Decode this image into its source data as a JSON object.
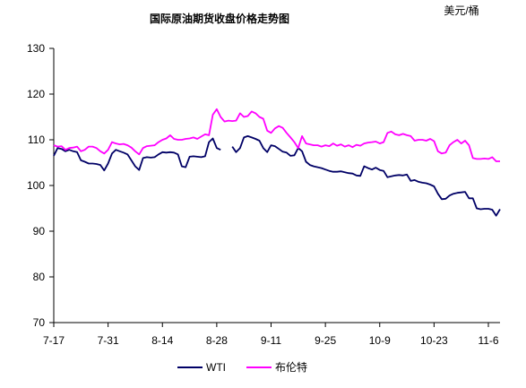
{
  "chart_data": {
    "type": "line",
    "title": "国际原油期货收盘价格走势图",
    "unit": "美元/桶",
    "ylim": [
      70,
      130
    ],
    "yticks": [
      70,
      80,
      90,
      100,
      110,
      120,
      130
    ],
    "xtick_labels": [
      "7-17",
      "7-31",
      "8-14",
      "8-28",
      "9-11",
      "9-25",
      "10-9",
      "10-23",
      "11-6"
    ],
    "xtick_positions": [
      0,
      14,
      28,
      42,
      56,
      70,
      84,
      98,
      112
    ],
    "x_range": [
      0,
      112
    ],
    "grid": false,
    "legend": "bottom",
    "series": [
      {
        "name": "WTI",
        "color": "#000066",
        "points": [
          [
            0,
            106.5
          ],
          [
            1,
            108.2
          ],
          [
            2,
            108.0
          ],
          [
            3,
            107.5
          ],
          [
            4,
            107.8
          ],
          [
            5,
            107.5
          ],
          [
            6,
            107.3
          ],
          [
            7,
            105.5
          ],
          [
            8,
            105.2
          ],
          [
            9,
            104.8
          ],
          [
            10,
            104.8
          ],
          [
            11,
            104.7
          ],
          [
            12,
            104.5
          ],
          [
            13,
            103.3
          ],
          [
            14,
            104.8
          ],
          [
            15,
            107.0
          ],
          [
            16,
            107.8
          ],
          [
            17,
            107.5
          ],
          [
            18,
            107.2
          ],
          [
            19,
            106.8
          ],
          [
            20,
            105.5
          ],
          [
            21,
            104.2
          ],
          [
            22,
            103.4
          ],
          [
            23,
            106.0
          ],
          [
            24,
            106.2
          ],
          [
            25,
            106.1
          ],
          [
            26,
            106.2
          ],
          [
            27,
            106.8
          ],
          [
            28,
            107.3
          ],
          [
            29,
            107.2
          ],
          [
            30,
            107.3
          ],
          [
            31,
            107.2
          ],
          [
            32,
            106.8
          ],
          [
            33,
            104.2
          ],
          [
            34,
            104.0
          ],
          [
            35,
            106.3
          ],
          [
            36,
            106.4
          ],
          [
            37,
            106.3
          ],
          [
            38,
            106.2
          ],
          [
            39,
            106.4
          ],
          [
            40,
            109.5
          ],
          [
            41,
            110.3
          ],
          [
            42,
            108.2
          ],
          [
            43,
            107.8
          ],
          [
            45,
            null
          ],
          [
            46,
            108.5
          ],
          [
            47,
            107.3
          ],
          [
            48,
            108.2
          ],
          [
            49,
            110.5
          ],
          [
            50,
            110.8
          ],
          [
            51,
            110.5
          ],
          [
            52,
            110.2
          ],
          [
            53,
            109.8
          ],
          [
            54,
            108.2
          ],
          [
            55,
            107.3
          ],
          [
            56,
            108.8
          ],
          [
            57,
            108.6
          ],
          [
            58,
            108.0
          ],
          [
            59,
            107.4
          ],
          [
            60,
            107.2
          ],
          [
            61,
            106.5
          ],
          [
            62,
            106.6
          ],
          [
            63,
            108.2
          ],
          [
            64,
            107.5
          ],
          [
            65,
            105.2
          ],
          [
            66,
            104.5
          ],
          [
            67,
            104.2
          ],
          [
            68,
            104.0
          ],
          [
            69,
            103.8
          ],
          [
            70,
            103.5
          ],
          [
            71,
            103.2
          ],
          [
            72,
            103.0
          ],
          [
            73,
            103.0
          ],
          [
            74,
            103.1
          ],
          [
            75,
            102.9
          ],
          [
            76,
            102.7
          ],
          [
            77,
            102.6
          ],
          [
            78,
            102.2
          ],
          [
            79,
            102.1
          ],
          [
            80,
            104.2
          ],
          [
            81,
            103.8
          ],
          [
            82,
            103.5
          ],
          [
            83,
            103.9
          ],
          [
            84,
            103.4
          ],
          [
            85,
            103.2
          ],
          [
            86,
            101.8
          ],
          [
            87,
            102.0
          ],
          [
            88,
            102.2
          ],
          [
            89,
            102.3
          ],
          [
            90,
            102.2
          ],
          [
            91,
            102.4
          ],
          [
            92,
            101.0
          ],
          [
            93,
            101.2
          ],
          [
            94,
            100.8
          ],
          [
            95,
            100.6
          ],
          [
            96,
            100.5
          ],
          [
            97,
            100.2
          ],
          [
            98,
            99.8
          ],
          [
            99,
            98.2
          ],
          [
            100,
            97.0
          ],
          [
            101,
            97.1
          ],
          [
            102,
            97.8
          ],
          [
            103,
            98.2
          ],
          [
            104,
            98.4
          ],
          [
            105,
            98.5
          ],
          [
            106,
            98.6
          ],
          [
            107,
            97.2
          ],
          [
            108,
            97.2
          ],
          [
            109,
            95.0
          ],
          [
            110,
            94.8
          ],
          [
            111,
            94.9
          ],
          [
            112,
            94.9
          ],
          [
            113,
            94.7
          ],
          [
            114,
            93.4
          ],
          [
            115,
            94.8
          ]
        ]
      },
      {
        "name": "布伦特",
        "color": "#ff00ff",
        "points": [
          [
            0,
            108.8
          ],
          [
            1,
            108.5
          ],
          [
            2,
            108.6
          ],
          [
            3,
            107.8
          ],
          [
            4,
            108.2
          ],
          [
            5,
            108.3
          ],
          [
            6,
            108.5
          ],
          [
            7,
            107.5
          ],
          [
            8,
            107.8
          ],
          [
            9,
            108.5
          ],
          [
            10,
            108.5
          ],
          [
            11,
            108.2
          ],
          [
            12,
            107.5
          ],
          [
            13,
            107.0
          ],
          [
            14,
            107.8
          ],
          [
            15,
            109.5
          ],
          [
            16,
            109.2
          ],
          [
            17,
            109.0
          ],
          [
            18,
            109.1
          ],
          [
            19,
            108.8
          ],
          [
            20,
            108.3
          ],
          [
            21,
            107.5
          ],
          [
            22,
            106.8
          ],
          [
            23,
            108.2
          ],
          [
            24,
            108.6
          ],
          [
            25,
            108.7
          ],
          [
            26,
            108.8
          ],
          [
            27,
            109.5
          ],
          [
            28,
            110.0
          ],
          [
            29,
            110.3
          ],
          [
            30,
            111.0
          ],
          [
            31,
            110.2
          ],
          [
            32,
            110.0
          ],
          [
            33,
            110.0
          ],
          [
            34,
            110.2
          ],
          [
            35,
            110.3
          ],
          [
            36,
            110.5
          ],
          [
            37,
            110.2
          ],
          [
            38,
            110.7
          ],
          [
            39,
            111.2
          ],
          [
            40,
            111.0
          ],
          [
            41,
            115.5
          ],
          [
            42,
            116.7
          ],
          [
            43,
            115.0
          ],
          [
            44,
            114.0
          ],
          [
            45,
            114.2
          ],
          [
            46,
            114.1
          ],
          [
            47,
            114.2
          ],
          [
            48,
            115.8
          ],
          [
            49,
            115.0
          ],
          [
            50,
            115.2
          ],
          [
            51,
            116.2
          ],
          [
            52,
            115.8
          ],
          [
            53,
            115.0
          ],
          [
            54,
            114.6
          ],
          [
            55,
            112.0
          ],
          [
            56,
            111.5
          ],
          [
            57,
            112.5
          ],
          [
            58,
            113.0
          ],
          [
            59,
            112.6
          ],
          [
            60,
            111.5
          ],
          [
            61,
            110.5
          ],
          [
            62,
            109.5
          ],
          [
            63,
            108.2
          ],
          [
            64,
            110.8
          ],
          [
            65,
            109.2
          ],
          [
            66,
            109.0
          ],
          [
            67,
            108.8
          ],
          [
            68,
            108.8
          ],
          [
            69,
            108.5
          ],
          [
            70,
            108.8
          ],
          [
            71,
            108.6
          ],
          [
            72,
            109.2
          ],
          [
            73,
            108.7
          ],
          [
            74,
            109.0
          ],
          [
            75,
            108.5
          ],
          [
            76,
            108.8
          ],
          [
            77,
            108.4
          ],
          [
            78,
            108.9
          ],
          [
            79,
            108.7
          ],
          [
            80,
            109.2
          ],
          [
            81,
            109.4
          ],
          [
            82,
            109.5
          ],
          [
            83,
            109.6
          ],
          [
            84,
            109.2
          ],
          [
            85,
            109.5
          ],
          [
            86,
            111.5
          ],
          [
            87,
            111.8
          ],
          [
            88,
            111.2
          ],
          [
            89,
            111.0
          ],
          [
            90,
            111.3
          ],
          [
            91,
            111.0
          ],
          [
            92,
            110.8
          ],
          [
            93,
            109.8
          ],
          [
            94,
            110.0
          ],
          [
            95,
            110.0
          ],
          [
            96,
            109.8
          ],
          [
            97,
            110.2
          ],
          [
            98,
            109.7
          ],
          [
            99,
            107.5
          ],
          [
            100,
            107.0
          ],
          [
            101,
            107.2
          ],
          [
            102,
            108.8
          ],
          [
            103,
            109.5
          ],
          [
            104,
            110.0
          ],
          [
            105,
            109.2
          ],
          [
            106,
            109.8
          ],
          [
            107,
            108.8
          ],
          [
            108,
            106.0
          ],
          [
            109,
            105.8
          ],
          [
            110,
            105.8
          ],
          [
            111,
            105.9
          ],
          [
            112,
            105.8
          ],
          [
            113,
            106.2
          ],
          [
            114,
            105.3
          ],
          [
            115,
            105.3
          ]
        ]
      }
    ]
  }
}
